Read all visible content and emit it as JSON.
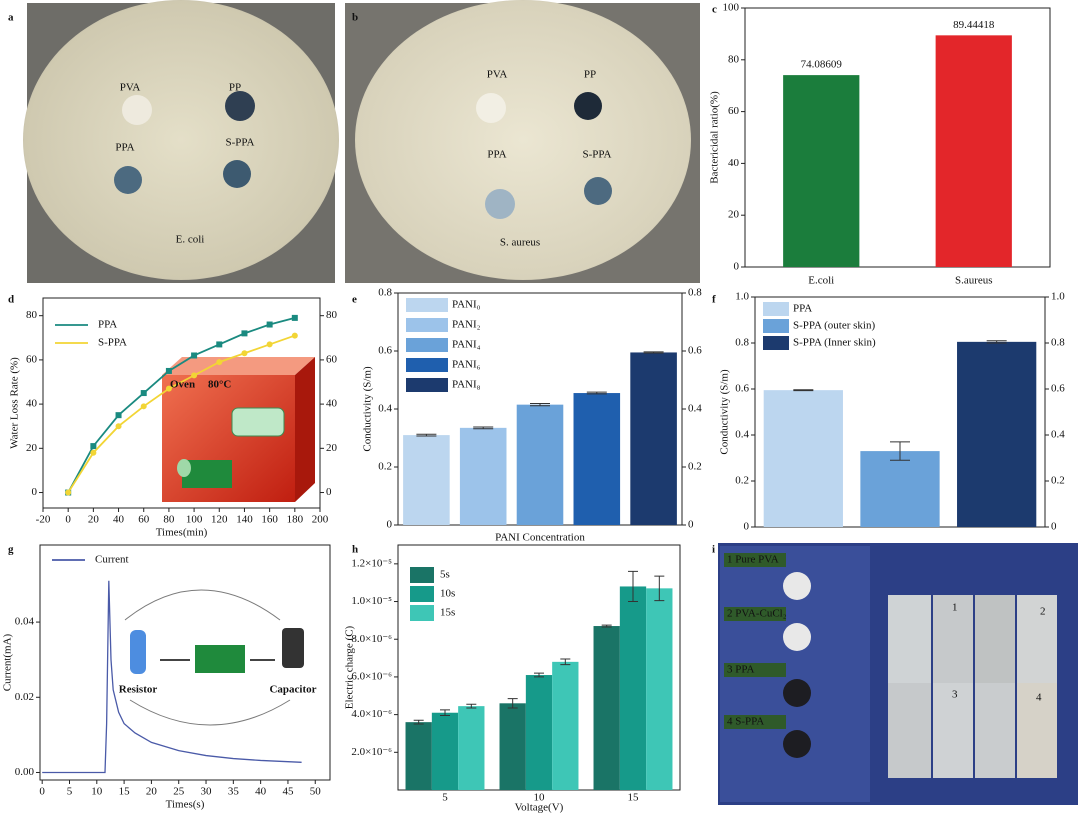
{
  "panel_labels": [
    "a",
    "b",
    "c",
    "d",
    "e",
    "f",
    "g",
    "h",
    "i"
  ],
  "photo_a": {
    "labels": [
      "PVA",
      "PP",
      "PPA",
      "S-PPA"
    ],
    "organism": "E. coli"
  },
  "photo_b": {
    "labels": [
      "PVA",
      "PP",
      "PPA",
      "S-PPA"
    ],
    "organism": "S. aureus"
  },
  "photo_i": {
    "labels": [
      "1 Pure PVA",
      "2 PVA-CuCl₂",
      "3 PPA",
      "4 S-PPA"
    ],
    "samples": [
      "1",
      "2",
      "3",
      "4"
    ]
  },
  "chart_data": [
    {
      "type": "bar",
      "ylabel": "Bactericidal ratio(%)",
      "categories": [
        "E.coli",
        "S.aureus"
      ],
      "values": [
        74.08609,
        89.44418
      ],
      "colors": [
        "#1b7d3c",
        "#e3262a"
      ],
      "ylim": [
        0,
        100
      ],
      "yticks": [
        0,
        20,
        40,
        60,
        80,
        100
      ]
    },
    {
      "type": "line",
      "xlabel": "Times(min)",
      "ylabel": "Water Loss Rate (%)",
      "x": [
        0,
        20,
        40,
        60,
        80,
        100,
        120,
        140,
        160,
        180
      ],
      "series": [
        {
          "name": "PPA",
          "color": "#1a8a80",
          "marker": "square",
          "values": [
            0,
            21,
            35,
            45,
            55,
            62,
            67,
            72,
            76,
            79
          ]
        },
        {
          "name": "S-PPA",
          "color": "#f2d535",
          "marker": "circle",
          "values": [
            0,
            18,
            30,
            39,
            47,
            53,
            59,
            63,
            67,
            71
          ]
        }
      ],
      "xlim": [
        -20,
        200
      ],
      "xticks": [
        -20,
        0,
        20,
        40,
        60,
        80,
        100,
        120,
        140,
        160,
        180,
        200
      ],
      "ylim": [
        -7,
        88
      ],
      "yticks": [
        0,
        20,
        40,
        60,
        80
      ],
      "inset_labels": [
        "Oven",
        "80°C"
      ]
    },
    {
      "type": "bar",
      "xlabel": "PANI Concentration",
      "ylabel": "Conductivity (S/m)",
      "series": [
        {
          "name": "PANI₀",
          "color": "#bcd6ef",
          "values": [
            0.31
          ],
          "errors": [
            0.003
          ]
        },
        {
          "name": "PANI₂",
          "color": "#9cc3ea",
          "values": [
            0.335
          ],
          "errors": [
            0.003
          ]
        },
        {
          "name": "PANI₄",
          "color": "#6aa2d9",
          "values": [
            0.415
          ],
          "errors": [
            0.004
          ]
        },
        {
          "name": "PANI₆",
          "color": "#1f5fae",
          "values": [
            0.455
          ],
          "errors": [
            0.003
          ]
        },
        {
          "name": "PANI₈",
          "color": "#1c3a6e",
          "values": [
            0.595
          ],
          "errors": [
            0.002
          ]
        }
      ],
      "ylim": [
        0,
        0.8
      ],
      "yticks": [
        0,
        0.2,
        0.4,
        0.6,
        0.8
      ]
    },
    {
      "type": "bar",
      "ylabel": "Conductivity (S/m)",
      "series": [
        {
          "name": "PPA",
          "color": "#bcd6ef",
          "values": [
            0.595
          ],
          "errors": [
            0.002
          ]
        },
        {
          "name": "S-PPA (outer skin)",
          "color": "#6aa2d9",
          "values": [
            0.33
          ],
          "errors": [
            0.04
          ]
        },
        {
          "name": "S-PPA (Inner skin)",
          "color": "#1c3a6e",
          "values": [
            0.805
          ],
          "errors": [
            0.005
          ]
        }
      ],
      "ylim": [
        0,
        1
      ],
      "yticks": [
        0,
        0.2,
        0.4,
        0.6,
        0.8,
        {
          "value": 1,
          "label": "1.0"
        }
      ]
    },
    {
      "type": "line",
      "xlabel": "Times(s)",
      "ylabel": "Current(mA)",
      "x": [
        0,
        11.5,
        11.8,
        12.2,
        12.6,
        13,
        14,
        15,
        17,
        20,
        25,
        30,
        35,
        40,
        47.5
      ],
      "series": [
        {
          "name": "Current",
          "color": "#4a5aa8",
          "values": [
            0,
            0,
            0.013,
            0.051,
            0.03,
            0.022,
            0.016,
            0.013,
            0.0105,
            0.008,
            0.0058,
            0.0045,
            0.0037,
            0.0032,
            0.0027
          ]
        }
      ],
      "xlim": [
        -0.4,
        52.7
      ],
      "xticks": [
        0,
        5,
        10,
        15,
        20,
        25,
        30,
        35,
        40,
        45,
        50
      ],
      "ylim": [
        -0.002,
        0.0605
      ],
      "yticks": [
        {
          "value": 0,
          "label": "0.00"
        },
        {
          "value": 0.02,
          "label": "0.02"
        },
        {
          "value": 0.04,
          "label": "0.04"
        }
      ],
      "inset_labels": [
        "Resistor",
        "Capacitor"
      ]
    },
    {
      "type": "grouped-bar",
      "xlabel": "Voltage(V)",
      "ylabel": "Electric charge (C)",
      "categories": [
        "5",
        "10",
        "15"
      ],
      "series": [
        {
          "name": "5s",
          "color": "#1a7466",
          "values": [
            3.6e-06,
            4.6e-06,
            8.7e-06
          ],
          "errors": [
            1e-07,
            2.5e-07,
            5e-08
          ]
        },
        {
          "name": "10s",
          "color": "#169a8a",
          "values": [
            4.1e-06,
            6.1e-06,
            1.08e-05
          ],
          "errors": [
            1.5e-07,
            1e-07,
            8e-07
          ]
        },
        {
          "name": "15s",
          "color": "#3ec6b6",
          "values": [
            4.45e-06,
            6.8e-06,
            1.07e-05
          ],
          "errors": [
            1e-07,
            1.5e-07,
            6.5e-07
          ]
        }
      ],
      "ylim": [
        0,
        1.3e-05
      ],
      "yticks": [
        {
          "value": 2e-06,
          "label": "2.0×10⁻⁶"
        },
        {
          "value": 4e-06,
          "label": "4.0×10⁻⁶"
        },
        {
          "value": 6e-06,
          "label": "6.0×10⁻⁶"
        },
        {
          "value": 8e-06,
          "label": "8.0×10⁻⁶"
        },
        {
          "value": 1e-05,
          "label": "1.0×10⁻⁵"
        },
        {
          "value": 1.2e-05,
          "label": "1.2×10⁻⁵"
        }
      ]
    }
  ]
}
